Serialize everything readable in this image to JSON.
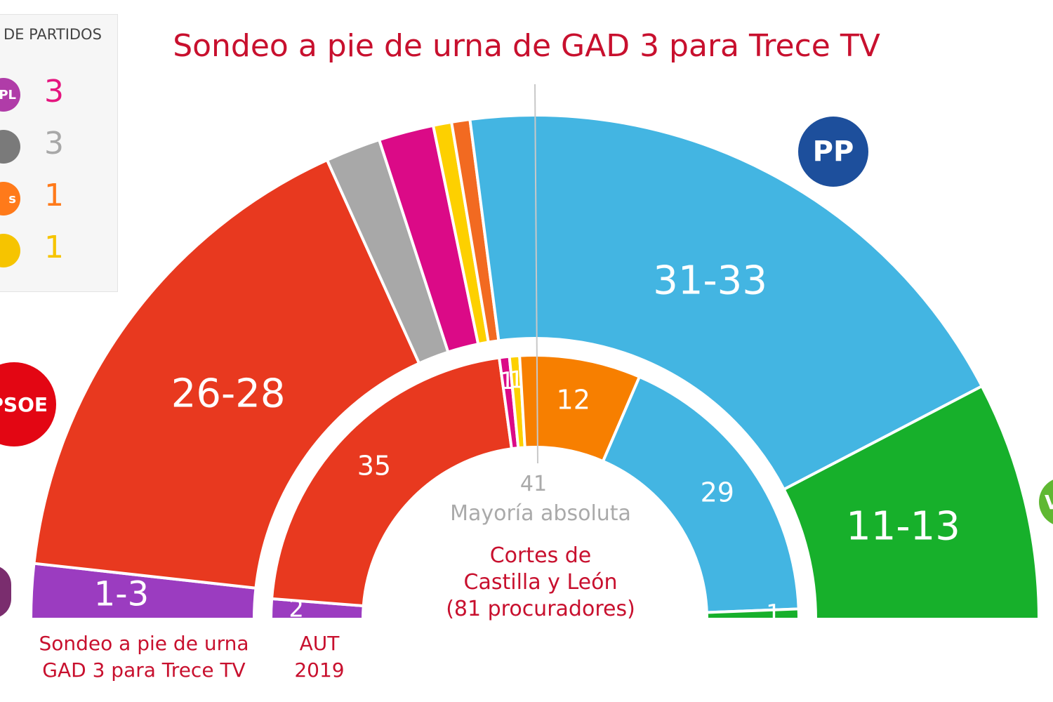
{
  "title": "Sondeo a pie de urna de GAD 3 para Trece TV",
  "legend": {
    "title": "DE PARTIDOS",
    "items": [
      {
        "logo_text": "PL",
        "value": "3",
        "color": "#e5157f",
        "logo_color": "#b03ca8"
      },
      {
        "logo_text": "",
        "value": "3",
        "color": "#a8a8a8",
        "logo_color": "#7a7a7a"
      },
      {
        "logo_text": "s",
        "value": "1",
        "color": "#ff7a1a",
        "logo_color": "#ff7a1a"
      },
      {
        "logo_text": "",
        "value": "1",
        "color": "#f6c400",
        "logo_color": "#f6c400"
      }
    ]
  },
  "logos": {
    "pp": "PP",
    "psoe": "PSOE",
    "vox": "V"
  },
  "majority": {
    "value": "41",
    "label": "Mayoría absoluta"
  },
  "center_caption": [
    "Cortes de",
    "Castilla y León",
    "(81 procuradores)"
  ],
  "outer_caption": [
    "Sondeo a pie de urna",
    "GAD 3 para Trece TV"
  ],
  "inner_caption": [
    "AUT",
    "2019"
  ],
  "chart_data": [
    {
      "type": "pie",
      "name": "Sondeo a pie de urna GAD 3 para Trece TV",
      "segments": [
        {
          "label": "1-3",
          "value": 3,
          "color": "#9b3cc0"
        },
        {
          "label": "26-28",
          "value": 28,
          "color": "#e8391f"
        },
        {
          "label": "",
          "value": 3,
          "color": "#a8a8a8"
        },
        {
          "label": "",
          "value": 3,
          "color": "#db0a87"
        },
        {
          "label": "",
          "value": 1,
          "color": "#fdd000"
        },
        {
          "label": "",
          "value": 1,
          "color": "#f26a21"
        },
        {
          "label": "31-33",
          "value": 33,
          "color": "#43b5e2"
        },
        {
          "label": "11-13",
          "value": 13,
          "color": "#17b02b"
        }
      ]
    },
    {
      "type": "pie",
      "name": "AUT 2019",
      "segments": [
        {
          "label": "2",
          "value": 2,
          "color": "#9b3cc0"
        },
        {
          "label": "35",
          "value": 35,
          "color": "#e8391f"
        },
        {
          "label": "1",
          "value": 1,
          "color": "#db0a87"
        },
        {
          "label": "1",
          "value": 1,
          "color": "#fdd000"
        },
        {
          "label": "12",
          "value": 12,
          "color": "#f77f00"
        },
        {
          "label": "29",
          "value": 29,
          "color": "#43b5e2"
        },
        {
          "label": "1",
          "value": 1,
          "color": "#17b02b"
        }
      ]
    }
  ]
}
